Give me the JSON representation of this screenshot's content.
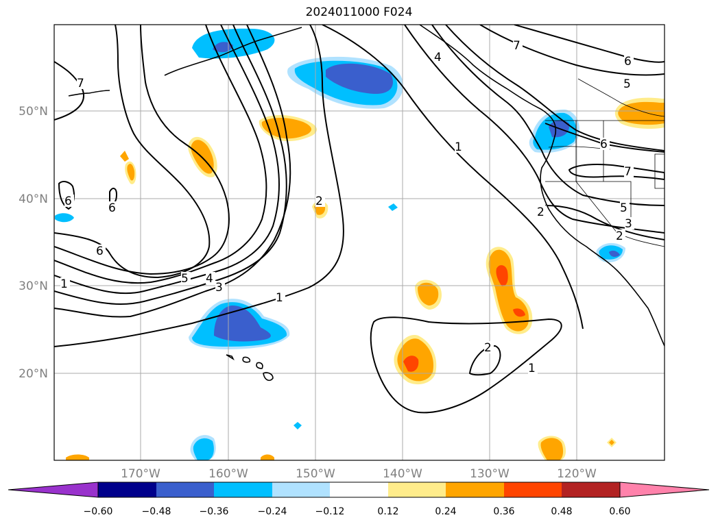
{
  "title": "2024011000 F024",
  "map": {
    "lat_labels": [
      {
        "label": "50°N",
        "value": 50
      },
      {
        "label": "40°N",
        "value": 40
      },
      {
        "label": "30°N",
        "value": 30
      },
      {
        "label": "20°N",
        "value": 20
      }
    ],
    "lon_labels": [
      {
        "label": "170°W",
        "value": -170
      },
      {
        "label": "160°W",
        "value": -160
      },
      {
        "label": "150°W",
        "value": -150
      },
      {
        "label": "140°W",
        "value": -140
      },
      {
        "label": "130°W",
        "value": -130
      },
      {
        "label": "120°W",
        "value": -120
      }
    ],
    "contour_labels": [
      "7",
      "6",
      "6",
      "6",
      "5",
      "4",
      "3",
      "2",
      "1",
      "1",
      "4",
      "7",
      "6",
      "5",
      "1",
      "6",
      "7",
      "5",
      "2",
      "3",
      "2",
      "2",
      "1"
    ]
  },
  "colorbar": {
    "ticks": [
      "−0.60",
      "−0.48",
      "−0.36",
      "−0.24",
      "−0.12",
      "0.12",
      "0.24",
      "0.36",
      "0.48",
      "0.60"
    ],
    "colors": [
      "#9932cc",
      "#00008b",
      "#3a5fcd",
      "#00bfff",
      "#b0e2ff",
      "#ffffff",
      "#ffec8b",
      "#ffa500",
      "#ff4500",
      "#b22222",
      "#ff82ab"
    ]
  }
}
